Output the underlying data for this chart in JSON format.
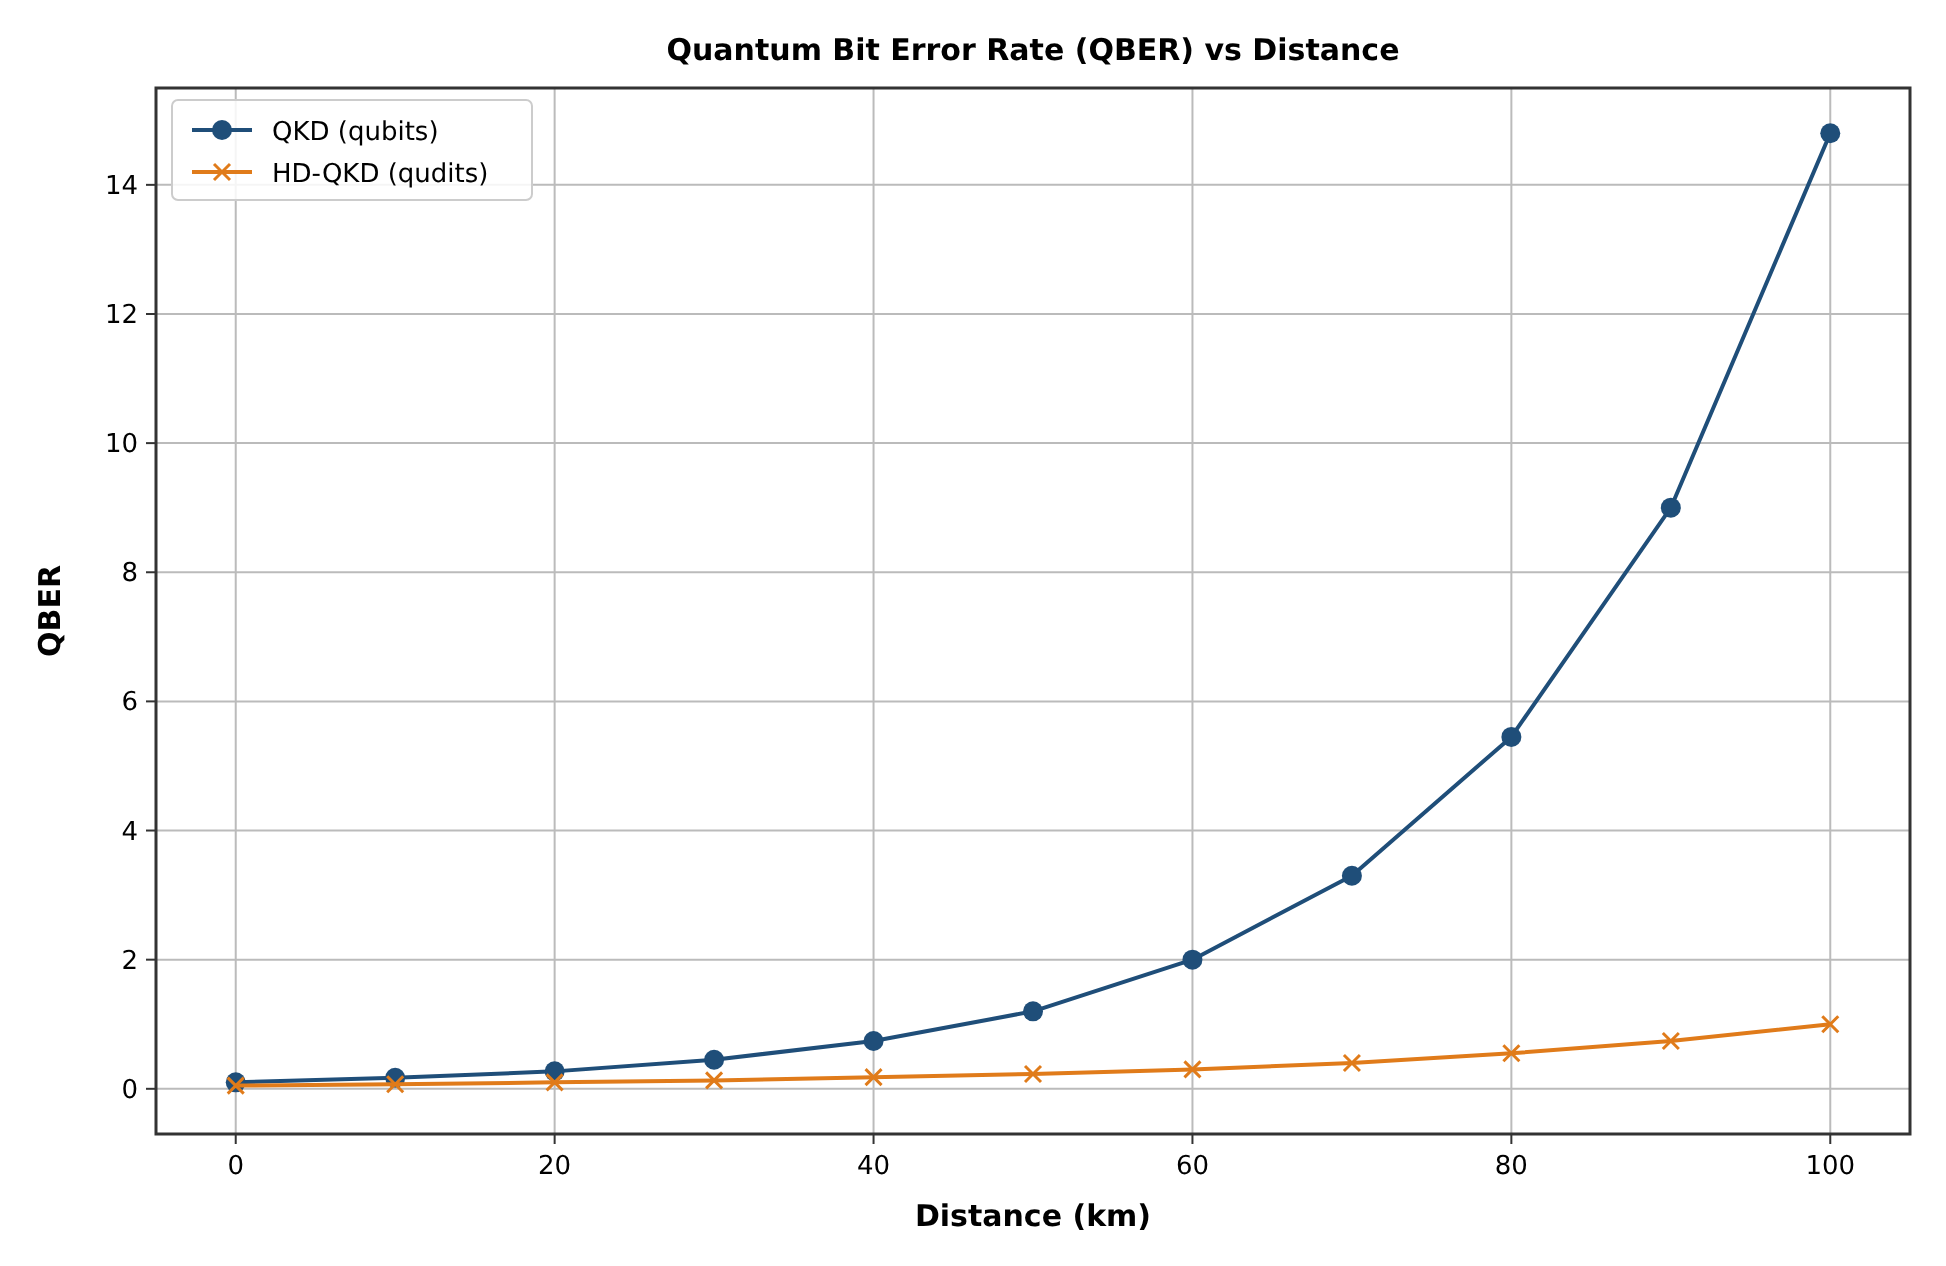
{
  "chart_data": {
    "type": "line",
    "title": "Quantum Bit Error Rate (QBER) vs Distance",
    "xlabel": "Distance (km)",
    "ylabel": "QBER",
    "x": [
      0,
      10,
      20,
      30,
      40,
      50,
      60,
      70,
      80,
      90,
      100
    ],
    "series": [
      {
        "name": "QKD (qubits)",
        "color": "#1f4e79",
        "marker": "circle",
        "values": [
          0.1,
          0.17,
          0.27,
          0.45,
          0.74,
          1.2,
          2.0,
          3.3,
          5.45,
          9.0,
          14.8
        ]
      },
      {
        "name": "HD-QKD (qudits)",
        "color": "#e07b1a",
        "marker": "cross",
        "values": [
          0.05,
          0.07,
          0.1,
          0.13,
          0.18,
          0.23,
          0.3,
          0.4,
          0.55,
          0.74,
          1.0
        ]
      }
    ],
    "xlim": [
      -5,
      105
    ],
    "ylim": [
      -0.7,
      15.5
    ],
    "xticks": [
      0,
      20,
      40,
      60,
      80,
      100
    ],
    "yticks": [
      0,
      2,
      4,
      6,
      8,
      10,
      12,
      14
    ],
    "grid": true,
    "legend": "top left",
    "line_style": "solid"
  }
}
